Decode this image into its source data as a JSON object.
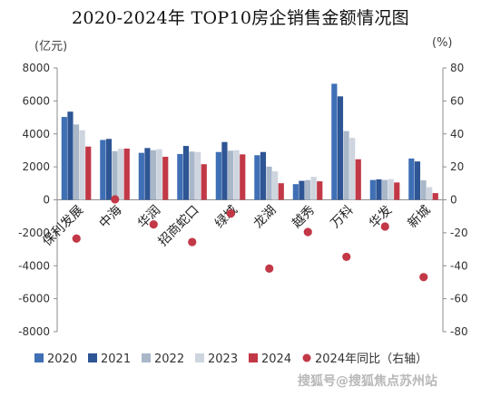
{
  "chart_data": {
    "type": "bar",
    "title": "2020-2024年 TOP10房企销售金额情况图",
    "left_unit": "(亿元)",
    "right_unit": "(%)",
    "categories": [
      "保利发展",
      "中海",
      "华润",
      "招商蛇口",
      "绿城",
      "龙湖",
      "越秀",
      "万科",
      "华发",
      "新城"
    ],
    "series": [
      {
        "name": "2020",
        "axis": "left",
        "color": "#3f6fb5",
        "values": [
          5028,
          3633,
          2850,
          2780,
          2900,
          2706,
          951,
          7041,
          1202,
          2508
        ]
      },
      {
        "name": "2021",
        "axis": "left",
        "color": "#2e5594",
        "values": [
          5349,
          3695,
          3142,
          3268,
          3507,
          2901,
          1151,
          6278,
          1242,
          2328
        ]
      },
      {
        "name": "2022",
        "axis": "left",
        "color": "#a9b7c9",
        "values": [
          4573,
          2955,
          3013,
          2926,
          2981,
          2015,
          1195,
          4170,
          1201,
          1182
        ]
      },
      {
        "name": "2023",
        "axis": "left",
        "color": "#ced5df",
        "values": [
          4223,
          3098,
          3070,
          2903,
          3009,
          1726,
          1394,
          3761,
          1256,
          767
        ]
      },
      {
        "name": "2024",
        "axis": "left",
        "color": "#c23847",
        "values": [
          3230,
          3107,
          2612,
          2160,
          2759,
          1006,
          1122,
          2460,
          1052,
          407
        ]
      },
      {
        "name": "2024年同比（右轴）",
        "axis": "right",
        "type": "scatter",
        "color": "#c23847",
        "values": [
          -23.5,
          0.3,
          -14.9,
          -25.6,
          -8.3,
          -41.7,
          -19.5,
          -34.6,
          -16.2,
          -46.9
        ]
      }
    ],
    "ylim": [
      -8000,
      8000
    ],
    "yticks": [
      -8000,
      -6000,
      -4000,
      -2000,
      0,
      2000,
      4000,
      6000,
      8000
    ],
    "y2lim": [
      -80,
      80
    ],
    "y2ticks": [
      -80,
      -60,
      -40,
      -20,
      0,
      20,
      40,
      60,
      80
    ],
    "legend_position": "bottom",
    "grid": false
  },
  "watermark": "搜狐号@搜狐焦点苏州站"
}
